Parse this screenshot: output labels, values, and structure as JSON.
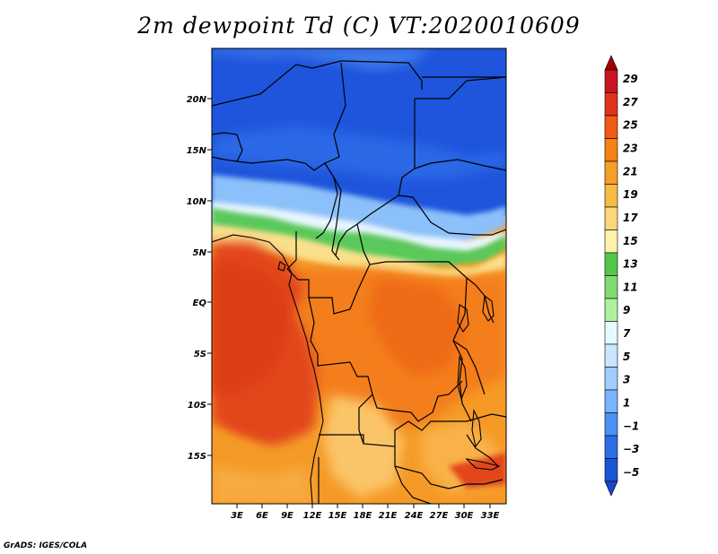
{
  "title": "2m dewpoint Td (C) VT:2020010609",
  "credit": "GrADS: IGES/COLA",
  "lat_labels": [
    "20N",
    "15N",
    "10N",
    "5N",
    "EQ",
    "5S",
    "10S",
    "15S"
  ],
  "lon_labels": [
    "3E",
    "6E",
    "9E",
    "12E",
    "15E",
    "18E",
    "21E",
    "24E",
    "27E",
    "30E",
    "33E"
  ],
  "colorbar": {
    "labels": [
      "29",
      "27",
      "25",
      "23",
      "21",
      "19",
      "17",
      "15",
      "13",
      "11",
      "9",
      "7",
      "5",
      "3",
      "1",
      "-1",
      "-3",
      "-5"
    ],
    "colors": [
      "#a50000",
      "#c8141e",
      "#e13219",
      "#f05a14",
      "#f58214",
      "#f59e28",
      "#f7bb46",
      "#fad778",
      "#fff0aa",
      "#52c84b",
      "#80dc70",
      "#aef0a0",
      "#e6fbff",
      "#c8e6ff",
      "#a0cdff",
      "#78b4ff",
      "#4b91f5",
      "#2d6ee6",
      "#1a55d2",
      "#1946c8"
    ]
  },
  "legend_colors": {
    "blue_dry": "#1e50dc",
    "green_transition": "#50c850",
    "orange_humid": "#f58c1e",
    "red_coast": "#e6461e"
  }
}
